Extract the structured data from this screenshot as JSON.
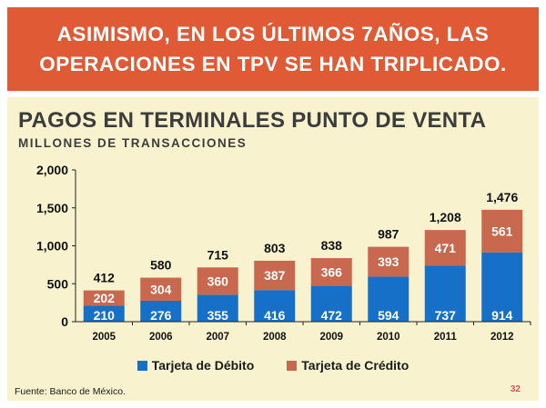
{
  "banner": {
    "line1": "ASIMISMO, EN LOS ÚLTIMOS 7AÑOS, LAS",
    "line2": "OPERACIONES EN TPV SE HAN TRIPLICADO."
  },
  "footer": {
    "source": "Fuente: Banco de México.",
    "page_number": "32"
  },
  "colors": {
    "banner": "#e05a35",
    "panel": "#f8f2cf",
    "debito": "#1670c8",
    "credito": "#c8684f"
  },
  "chart_data": {
    "type": "bar",
    "stacked": true,
    "title": "PAGOS EN TERMINALES PUNTO DE VENTA",
    "subtitle": "MILLONES DE TRANSACCIONES",
    "categories": [
      "2005",
      "2006",
      "2007",
      "2008",
      "2009",
      "2010",
      "2011",
      "2012"
    ],
    "series": [
      {
        "name": "Tarjeta de Débito",
        "values": [
          210,
          276,
          355,
          416,
          472,
          594,
          737,
          914
        ]
      },
      {
        "name": "Tarjeta de Crédito",
        "values": [
          202,
          304,
          360,
          387,
          366,
          393,
          471,
          561
        ]
      }
    ],
    "totals": [
      412,
      580,
      715,
      803,
      838,
      987,
      1208,
      1476
    ],
    "total_labels": [
      "412",
      "580",
      "715",
      "803",
      "838",
      "987",
      "1,208",
      "1,476"
    ],
    "yticks": [
      "0",
      "500",
      "1,000",
      "1,500",
      "2,000"
    ],
    "ytick_values": [
      0,
      500,
      1000,
      1500,
      2000
    ],
    "ylim": [
      0,
      2000
    ],
    "grid": false,
    "legend_position": "bottom"
  }
}
